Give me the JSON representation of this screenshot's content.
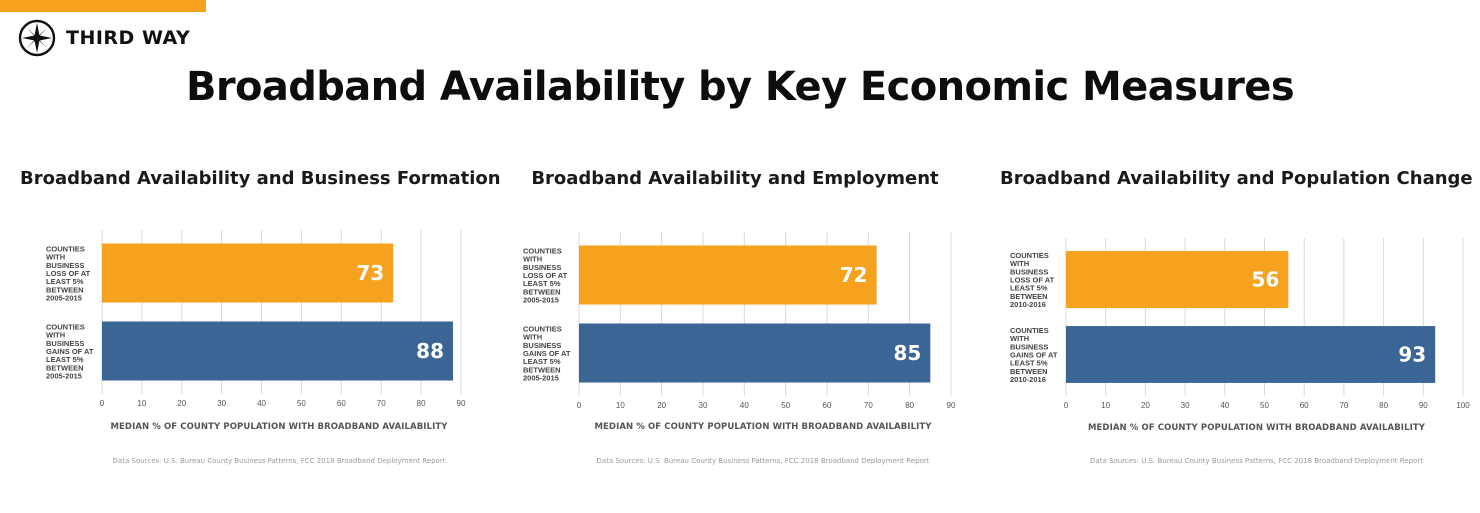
{
  "brand": {
    "name": "THIRD WAY",
    "accent": "#f6a21e",
    "icon": "compass-icon"
  },
  "title": "Broadband Availability by Key Economic Measures",
  "colors": {
    "loss": "#f6a21e",
    "gain": "#3b6594",
    "grid": "#d9d9d9"
  },
  "chart_data": [
    {
      "type": "bar",
      "orientation": "horizontal",
      "title": "Broadband Availability and Business Formation",
      "categories": [
        [
          "COUNTIES",
          "WITH",
          "BUSINESS",
          "LOSS OF AT",
          "LEAST 5%",
          "BETWEEN",
          "2005-2015"
        ],
        [
          "COUNTIES",
          "WITH",
          "BUSINESS",
          "GAINS OF AT",
          "LEAST 5%",
          "BETWEEN",
          "2005-2015"
        ]
      ],
      "values": [
        73,
        88
      ],
      "bar_colors": [
        "#f6a21e",
        "#3b6594"
      ],
      "xlim": [
        0,
        90
      ],
      "ticks": [
        0,
        10,
        20,
        30,
        40,
        50,
        60,
        70,
        80,
        90
      ],
      "xlabel": "MEDIAN % OF COUNTY POPULATION  WITH BROADBAND AVAILABILITY",
      "source": "Data Sources: U.S. Bureau County Business Patterns, FCC 2018 Broadband Deployment Report",
      "grid": true
    },
    {
      "type": "bar",
      "orientation": "horizontal",
      "title": "Broadband Availability and Employment",
      "categories": [
        [
          "COUNTIES",
          "WITH",
          "BUSINESS",
          "LOSS OF AT",
          "LEAST 5%",
          "BETWEEN",
          "2005-2015"
        ],
        [
          "COUNTIES",
          "WITH",
          "BUSINESS",
          "GAINS OF AT",
          "LEAST 5%",
          "BETWEEN",
          "2005-2015"
        ]
      ],
      "values": [
        72,
        85
      ],
      "bar_colors": [
        "#f6a21e",
        "#3b6594"
      ],
      "xlim": [
        0,
        90
      ],
      "ticks": [
        0,
        10,
        20,
        30,
        40,
        50,
        60,
        70,
        80,
        90
      ],
      "xlabel": "MEDIAN % OF COUNTY POPULATION  WITH BROADBAND AVAILABILITY",
      "source": "Data Sources: U.S. Bureau County Business Patterns, FCC 2018 Broadband Deployment Report",
      "grid": true
    },
    {
      "type": "bar",
      "orientation": "horizontal",
      "title": "Broadband Availability and Population Change",
      "categories": [
        [
          "COUNTIES",
          "WITH",
          "BUSINESS",
          "LOSS OF AT",
          "LEAST 5%",
          "BETWEEN",
          "2010-2016"
        ],
        [
          "COUNTIES",
          "WITH",
          "BUSINESS",
          "GAINS OF AT",
          "LEAST 5%",
          "BETWEEN",
          "2010-2016"
        ]
      ],
      "values": [
        56,
        93
      ],
      "bar_colors": [
        "#f6a21e",
        "#3b6594"
      ],
      "xlim": [
        0,
        100
      ],
      "ticks": [
        0,
        10,
        20,
        30,
        40,
        50,
        60,
        70,
        80,
        90,
        100
      ],
      "xlabel": "MEDIAN % OF COUNTY POPULATION  WITH BROADBAND AVAILABILITY",
      "source": "Data Sources: U.S. Bureau County Business Patterns, FCC 2018 Broadband Deployment Report",
      "grid": true
    }
  ]
}
